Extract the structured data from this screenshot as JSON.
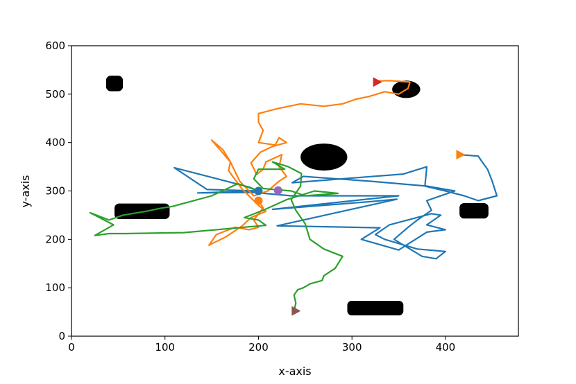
{
  "chart_data": {
    "type": "line",
    "title": "",
    "xlabel": "x-axis",
    "ylabel": "y-axis",
    "xlim": [
      0,
      478
    ],
    "ylim": [
      0,
      600
    ],
    "xticks": [
      0,
      100,
      200,
      300,
      400
    ],
    "yticks": [
      0,
      100,
      200,
      300,
      400,
      500,
      600
    ],
    "grid": false,
    "legend": "none",
    "obstacles": [
      {
        "shape": "rounded-rect",
        "x": [
          37,
          55
        ],
        "y": [
          506,
          538
        ]
      },
      {
        "shape": "rounded-rect",
        "x": [
          46,
          105
        ],
        "y": [
          242,
          274
        ]
      },
      {
        "shape": "ellipse",
        "cx": 270,
        "cy": 370,
        "rx": 25,
        "ry": 28
      },
      {
        "shape": "ellipse",
        "cx": 358,
        "cy": 510,
        "rx": 15,
        "ry": 18
      },
      {
        "shape": "rounded-rect",
        "x": [
          415,
          446
        ],
        "y": [
          243,
          275
        ]
      },
      {
        "shape": "rounded-rect",
        "x": [
          295,
          355
        ],
        "y": [
          43,
          73
        ]
      }
    ],
    "series": [
      {
        "color": "#1f77b4",
        "values": [
          [
            200,
            300
          ],
          [
            145,
            303
          ],
          [
            110,
            348
          ],
          [
            190,
            308
          ],
          [
            200,
            300
          ],
          [
            135,
            296
          ],
          [
            195,
            297
          ],
          [
            235,
            290
          ],
          [
            350,
            290
          ],
          [
            215,
            262
          ],
          [
            320,
            278
          ],
          [
            348,
            283
          ],
          [
            220,
            228
          ],
          [
            330,
            224
          ],
          [
            310,
            200
          ],
          [
            350,
            178
          ],
          [
            380,
            215
          ],
          [
            400,
            220
          ],
          [
            380,
            230
          ],
          [
            395,
            250
          ],
          [
            385,
            253
          ],
          [
            340,
            230
          ],
          [
            325,
            210
          ],
          [
            335,
            200
          ],
          [
            370,
            180
          ],
          [
            400,
            175
          ],
          [
            390,
            160
          ],
          [
            375,
            165
          ],
          [
            345,
            200
          ],
          [
            360,
            225
          ],
          [
            370,
            240
          ],
          [
            385,
            260
          ],
          [
            380,
            280
          ],
          [
            410,
            300
          ],
          [
            380,
            310
          ],
          [
            320,
            320
          ],
          [
            248,
            330
          ],
          [
            236,
            317
          ],
          [
            355,
            335
          ],
          [
            380,
            350
          ],
          [
            378,
            310
          ],
          [
            400,
            300
          ],
          [
            420,
            290
          ],
          [
            435,
            280
          ],
          [
            455,
            290
          ],
          [
            450,
            320
          ],
          [
            445,
            345
          ],
          [
            440,
            358
          ],
          [
            435,
            372
          ],
          [
            415,
            375
          ]
        ]
      },
      {
        "color": "#ff7f0e",
        "values": [
          [
            200,
            280
          ],
          [
            205,
            265
          ],
          [
            195,
            240
          ],
          [
            200,
            225
          ],
          [
            190,
            220
          ],
          [
            175,
            225
          ],
          [
            155,
            210
          ],
          [
            147,
            188
          ],
          [
            165,
            205
          ],
          [
            182,
            227
          ],
          [
            192,
            245
          ],
          [
            208,
            258
          ],
          [
            200,
            270
          ],
          [
            182,
            305
          ],
          [
            168,
            342
          ],
          [
            170,
            360
          ],
          [
            150,
            405
          ],
          [
            162,
            385
          ],
          [
            170,
            360
          ],
          [
            180,
            320
          ],
          [
            195,
            290
          ],
          [
            210,
            300
          ],
          [
            222,
            320
          ],
          [
            230,
            330
          ],
          [
            222,
            350
          ],
          [
            225,
            375
          ],
          [
            208,
            360
          ],
          [
            205,
            345
          ],
          [
            198,
            334
          ],
          [
            192,
            358
          ],
          [
            202,
            380
          ],
          [
            215,
            392
          ],
          [
            230,
            400
          ],
          [
            222,
            410
          ],
          [
            218,
            395
          ],
          [
            200,
            400
          ],
          [
            205,
            425
          ],
          [
            200,
            442
          ],
          [
            200,
            460
          ],
          [
            220,
            470
          ],
          [
            245,
            480
          ],
          [
            270,
            475
          ],
          [
            290,
            480
          ],
          [
            305,
            490
          ],
          [
            318,
            495
          ],
          [
            335,
            505
          ],
          [
            350,
            500
          ],
          [
            360,
            512
          ],
          [
            362,
            525
          ],
          [
            340,
            528
          ],
          [
            325,
            527
          ]
        ]
      },
      {
        "color": "#2ca02c",
        "values": [
          [
            200,
            300
          ],
          [
            178,
            315
          ],
          [
            150,
            290
          ],
          [
            108,
            268
          ],
          [
            95,
            264
          ],
          [
            80,
            258
          ],
          [
            55,
            250
          ],
          [
            40,
            240
          ],
          [
            20,
            255
          ],
          [
            45,
            230
          ],
          [
            25,
            208
          ],
          [
            40,
            212
          ],
          [
            58,
            212
          ],
          [
            120,
            214
          ],
          [
            190,
            226
          ],
          [
            208,
            229
          ],
          [
            200,
            240
          ],
          [
            185,
            245
          ],
          [
            205,
            260
          ],
          [
            230,
            282
          ],
          [
            260,
            300
          ],
          [
            285,
            295
          ],
          [
            250,
            290
          ],
          [
            235,
            300
          ],
          [
            205,
            305
          ],
          [
            195,
            325
          ],
          [
            200,
            345
          ],
          [
            228,
            345
          ],
          [
            215,
            360
          ],
          [
            232,
            350
          ],
          [
            246,
            336
          ],
          [
            245,
            310
          ],
          [
            235,
            282
          ],
          [
            240,
            260
          ],
          [
            250,
            232
          ],
          [
            255,
            200
          ],
          [
            270,
            180
          ],
          [
            290,
            165
          ],
          [
            282,
            140
          ],
          [
            270,
            125
          ],
          [
            268,
            115
          ],
          [
            255,
            108
          ],
          [
            248,
            100
          ],
          [
            242,
            96
          ],
          [
            238,
            85
          ],
          [
            240,
            68
          ],
          [
            238,
            52
          ]
        ]
      }
    ],
    "markers": [
      {
        "shape": "circle",
        "x": 200,
        "y": 300,
        "color": "#1f77b4"
      },
      {
        "shape": "circle",
        "x": 200,
        "y": 280,
        "color": "#ff7f0e"
      },
      {
        "shape": "circle",
        "x": 221,
        "y": 301,
        "color": "#9467bd"
      },
      {
        "shape": "triangle-right",
        "x": 327,
        "y": 525,
        "color": "#d62728"
      },
      {
        "shape": "triangle-right",
        "x": 416,
        "y": 375,
        "color": "#ff7f0e"
      },
      {
        "shape": "triangle-right",
        "x": 240,
        "y": 52,
        "color": "#8c564b"
      }
    ]
  }
}
